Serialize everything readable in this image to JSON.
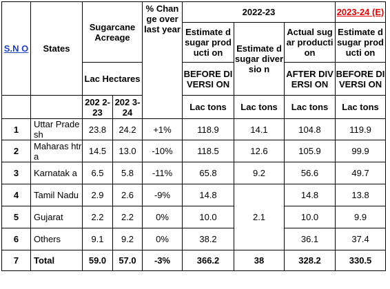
{
  "headers": {
    "sno": "S.N O",
    "states": "States",
    "acreage": "Sugarcane Acreage",
    "acreage_unit": "Lac Hectares",
    "year1": "202 2-23",
    "year2": "202 3-24",
    "change": "% Chan ge over last year",
    "group_2223": "2022-23",
    "group_2324": "2023-24 (E)",
    "est_prod": "Estimate d sugar producti on",
    "before_div": "BEFORE DIVERSI ON",
    "est_div": "Estimate d sugar diversio n",
    "actual_prod": "Actual sugar producti on",
    "after_div": "AFTER DIVERSI ON",
    "est_prod_2324": "Estimate d sugar producti on",
    "before_div_2324": "BEFORE DIVERSI ON",
    "unit": "Lac tons"
  },
  "rows": [
    {
      "sno": "1",
      "state": "Uttar Pradesh",
      "a1": "23.8",
      "a2": "24.2",
      "chg": "+1%",
      "est": "118.9",
      "div": "14.1",
      "act": "104.8",
      "e24": "119.9"
    },
    {
      "sno": "2",
      "state": "Maharas htra",
      "a1": "14.5",
      "a2": "13.0",
      "chg": "-10%",
      "est": "118.5",
      "div": "12.6",
      "act": "105.9",
      "e24": "99.9"
    },
    {
      "sno": "3",
      "state": "Karnatak a",
      "a1": "6.5",
      "a2": "5.8",
      "chg": "-11%",
      "est": "65.8",
      "div": "9.2",
      "act": "56.6",
      "e24": "49.7"
    },
    {
      "sno": "4",
      "state": "Tamil Nadu",
      "a1": "2.9",
      "a2": "2.6",
      "chg": "-9%",
      "est": "14.8",
      "act": "14.8",
      "e24": "13.8"
    },
    {
      "sno": "5",
      "state": "Gujarat",
      "a1": "2.2",
      "a2": "2.2",
      "chg": "0%",
      "est": "10.0",
      "act": "10.0",
      "e24": "9.9"
    },
    {
      "sno": "6",
      "state": "Others",
      "a1": "9.1",
      "a2": "9.2",
      "chg": "0%",
      "est": "38.2",
      "act": "36.1",
      "e24": "37.4"
    }
  ],
  "merged_div": "2.1",
  "total": {
    "sno": "7",
    "state": "Total",
    "a1": "59.0",
    "a2": "57.0",
    "chg": "-3%",
    "est": "366.2",
    "div": "38",
    "act": "328.2",
    "e24": "330.5"
  }
}
